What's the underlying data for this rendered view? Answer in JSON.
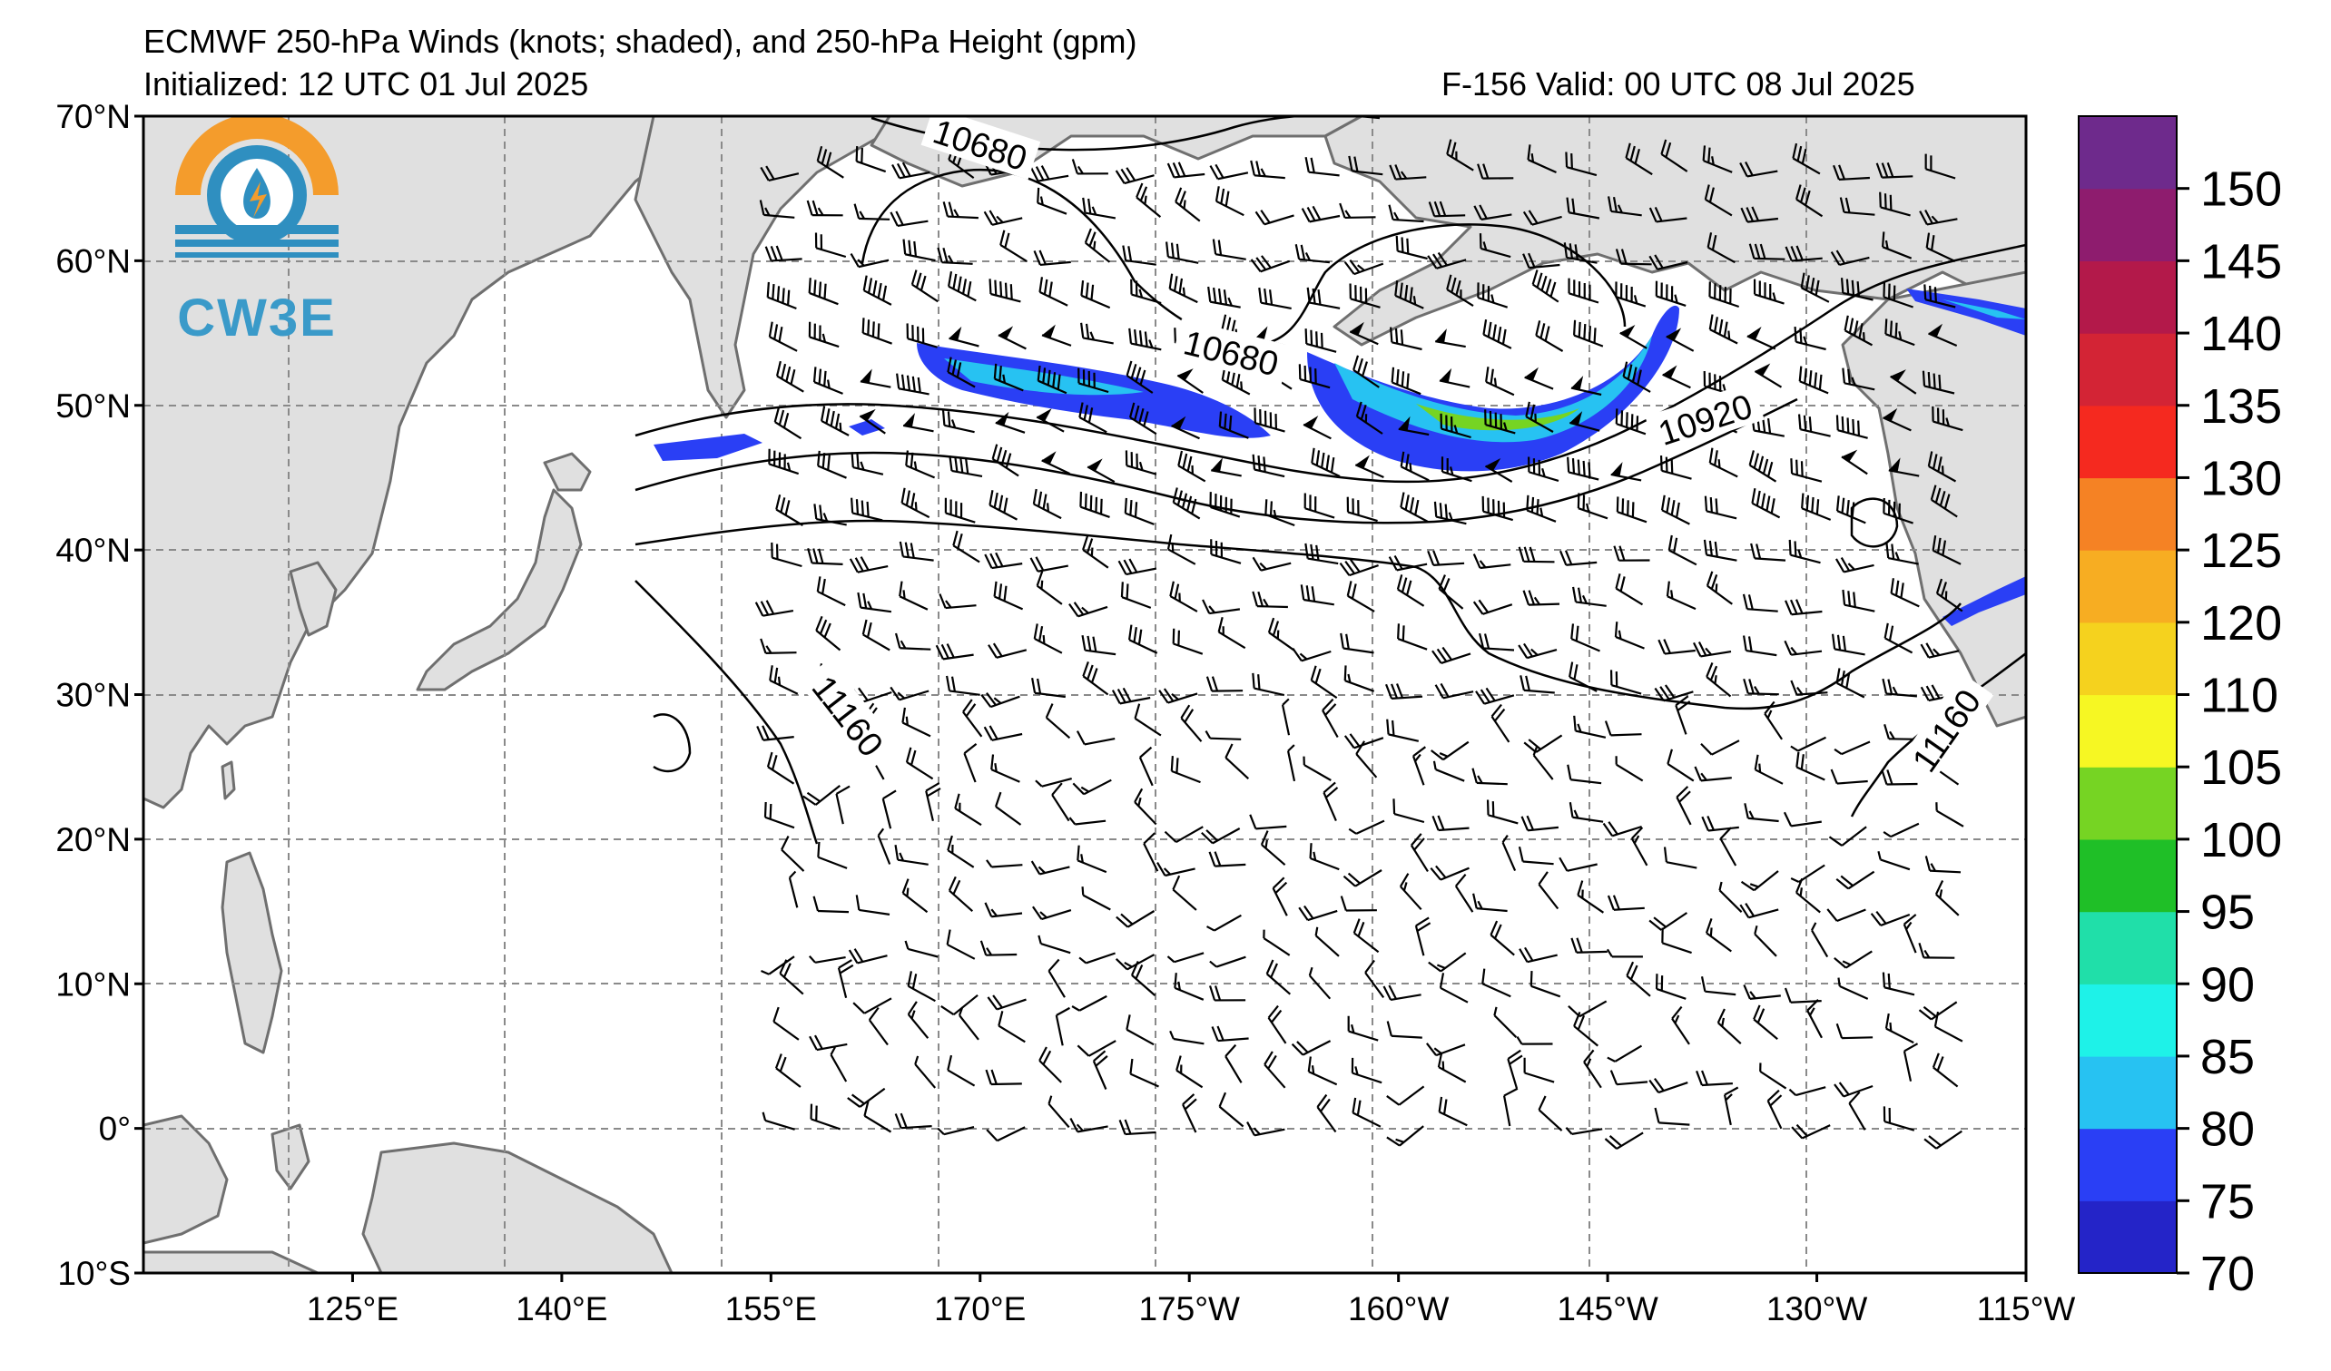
{
  "header": {
    "title": "ECMWF 250-hPa Winds (knots; shaded), and 250-hPa Height (gpm)",
    "initialized": "Initialized: 12 UTC 01 Jul 2025",
    "valid": "F-156  Valid: 00 UTC 08 Jul 2025"
  },
  "logo": {
    "text": "CW3E"
  },
  "map": {
    "lon_range_deg_east": [
      110,
      245
    ],
    "lat_range": [
      -10,
      70
    ],
    "lat_ticks": [
      {
        "value": 70,
        "label": "70°N"
      },
      {
        "value": 60,
        "label": "60°N"
      },
      {
        "value": 50,
        "label": "50°N"
      },
      {
        "value": 40,
        "label": "40°N"
      },
      {
        "value": 30,
        "label": "30°N"
      },
      {
        "value": 20,
        "label": "20°N"
      },
      {
        "value": 10,
        "label": "10°N"
      },
      {
        "value": 0,
        "label": "0°"
      },
      {
        "value": -10,
        "label": "10°S"
      }
    ],
    "lon_ticks": [
      {
        "value": 125,
        "label": "125°E"
      },
      {
        "value": 140,
        "label": "140°E"
      },
      {
        "value": 155,
        "label": "155°E"
      },
      {
        "value": 170,
        "label": "170°E"
      },
      {
        "value": 185,
        "label": "175°W"
      },
      {
        "value": 200,
        "label": "160°W"
      },
      {
        "value": 215,
        "label": "145°W"
      },
      {
        "value": 230,
        "label": "130°W"
      },
      {
        "value": 245,
        "label": "115°W"
      }
    ],
    "contour_labels": [
      {
        "text": "10680",
        "lon": 170,
        "lat": 68,
        "rot": 18
      },
      {
        "text": "10680",
        "lon": 188,
        "lat": 53.6,
        "rot": 14
      },
      {
        "text": "10920",
        "lon": 222,
        "lat": 49,
        "rot": -18
      },
      {
        "text": "11160",
        "lon": 160.5,
        "lat": 28.5,
        "rot": 52
      },
      {
        "text": "11160",
        "lon": 239.3,
        "lat": 27.5,
        "rot": -55
      }
    ],
    "colors": {
      "land": "#e0e0e0",
      "coast": "#6f6f6f",
      "grid": "#8a8a8a",
      "contour": "#000000",
      "barb": "#000000"
    }
  },
  "colorbar": {
    "levels": [
      70,
      75,
      80,
      85,
      90,
      95,
      100,
      105,
      110,
      120,
      125,
      130,
      135,
      140,
      145,
      150
    ],
    "colors": [
      "#2424c8",
      "#2a3ff5",
      "#27c2f2",
      "#1ef2e8",
      "#20dfa9",
      "#1fbf27",
      "#76d423",
      "#f6f723",
      "#f5d21e",
      "#f7ad22",
      "#f58224",
      "#f5291f",
      "#d32435",
      "#b3194a",
      "#8e1c6e",
      "#6e2a8c"
    ],
    "labels": [
      "70",
      "75",
      "80",
      "85",
      "90",
      "95",
      "100",
      "105",
      "110",
      "120",
      "125",
      "130",
      "135",
      "140",
      "145",
      "150"
    ]
  }
}
